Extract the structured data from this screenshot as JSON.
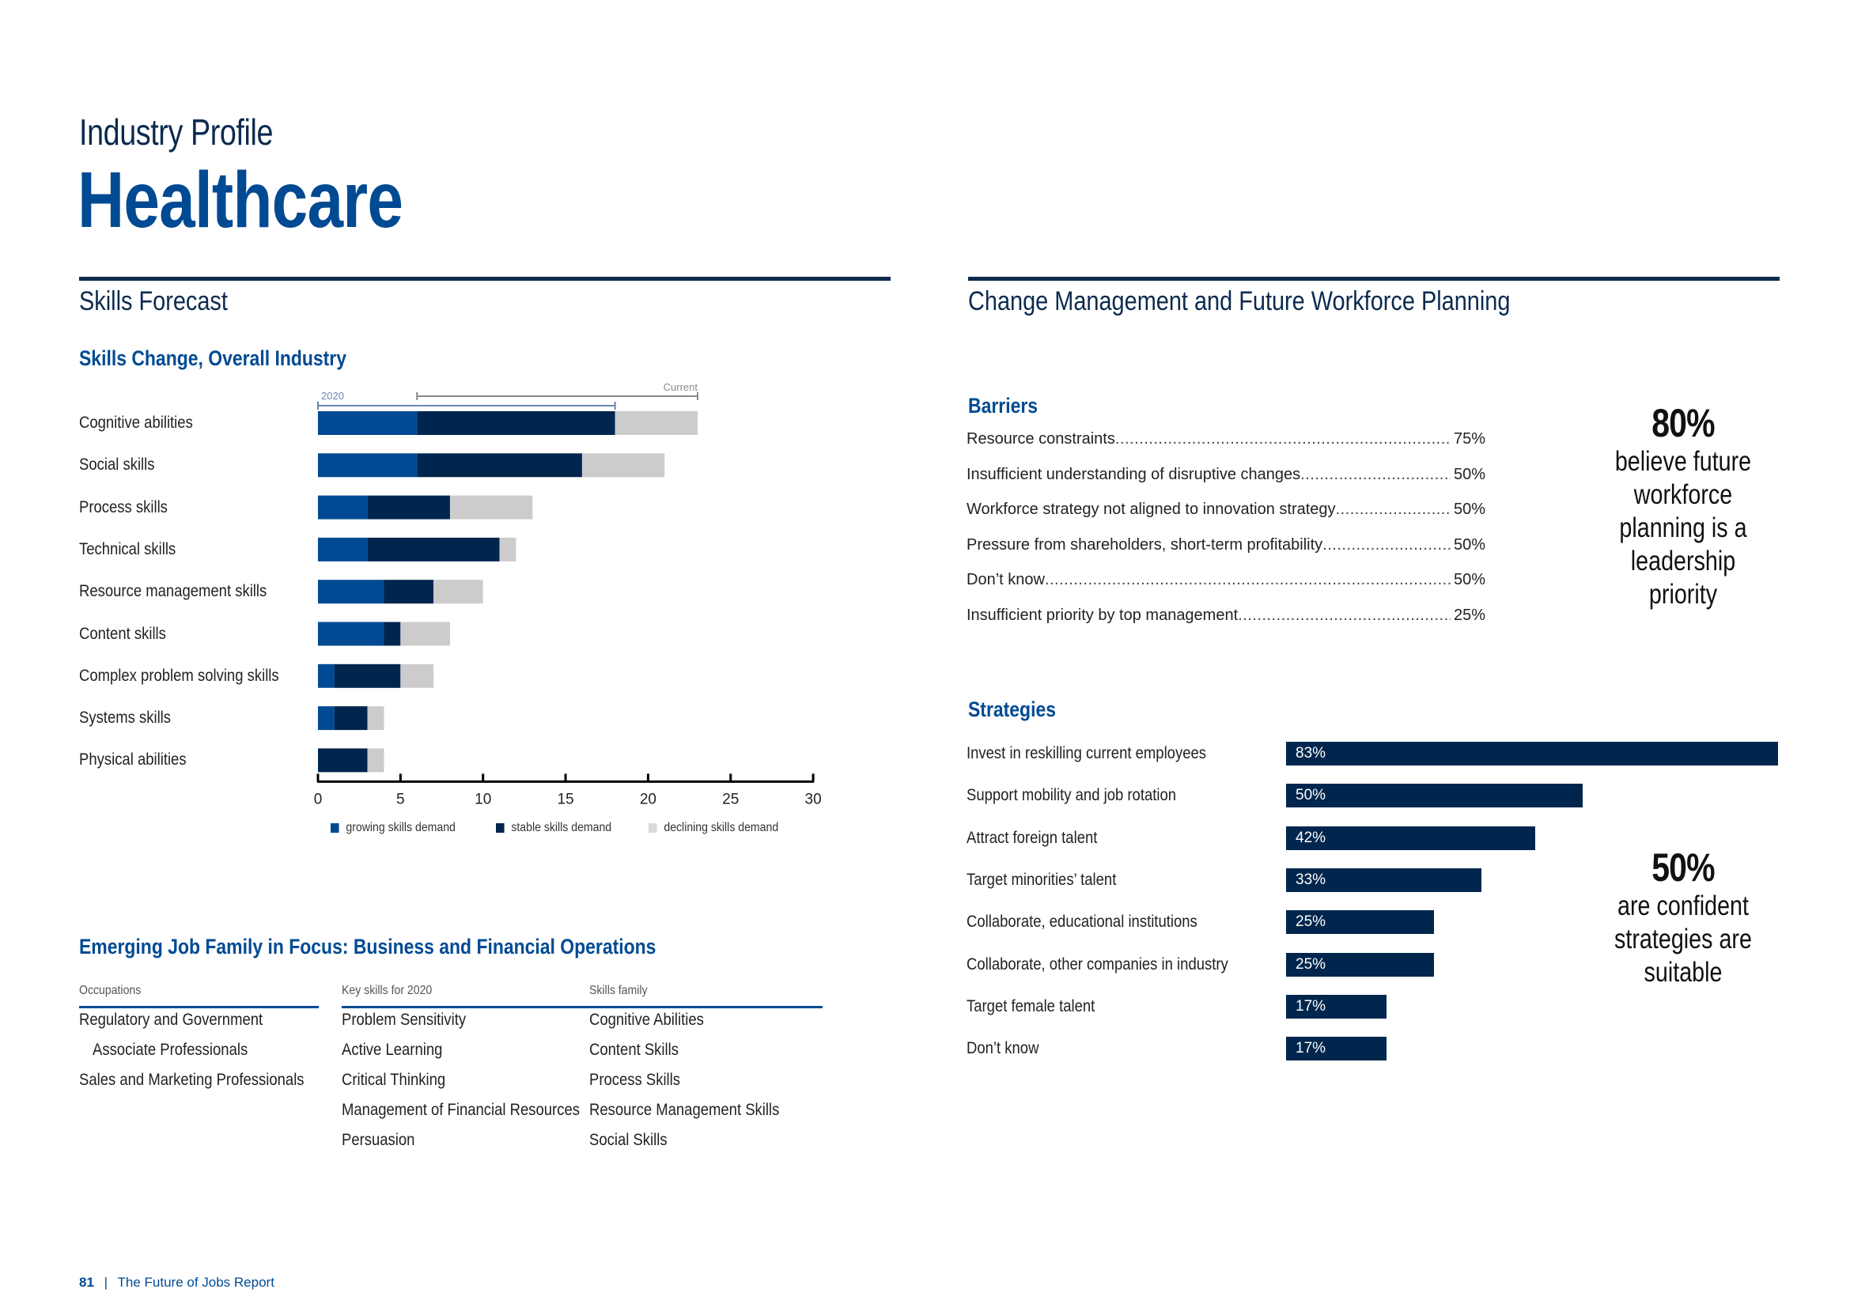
{
  "header": {
    "kicker": "Industry Profile",
    "title": "Healthcare"
  },
  "left": {
    "section_title": "Skills Forecast",
    "chart_title": "Skills Change, Overall Industry",
    "bracket_labels": {
      "period_2020": "2020",
      "current": "Current"
    }
  },
  "colors": {
    "growing": "#004a93",
    "stable": "#00264d",
    "declining": "#cccccc",
    "accent": "#004a93",
    "navy": "#0b2a4f"
  },
  "chart_data": {
    "type": "bar",
    "orientation": "horizontal",
    "stacked": true,
    "title": "Skills Change, Overall Industry",
    "categories": [
      "Cognitive abilities",
      "Social skills",
      "Process skills",
      "Technical skills",
      "Resource management skills",
      "Content skills",
      "Complex problem solving skills",
      "Systems skills",
      "Physical abilities"
    ],
    "series": [
      {
        "name": "growing skills demand",
        "values": [
          6,
          6,
          3,
          3,
          4,
          4,
          1,
          1,
          0
        ]
      },
      {
        "name": "stable skills demand",
        "values": [
          12,
          10,
          5,
          8,
          3,
          1,
          4,
          2,
          3
        ]
      },
      {
        "name": "declining skills demand",
        "values": [
          5,
          5,
          5,
          1,
          3,
          3,
          2,
          1,
          1
        ]
      }
    ],
    "xlim": [
      0,
      30
    ],
    "xticks": [
      0,
      5,
      10,
      15,
      20,
      25,
      30
    ],
    "xlabel": "",
    "ylabel": "",
    "grid": false,
    "legend_position": "bottom",
    "annotations": [
      {
        "label": "2020",
        "range": [
          0,
          18
        ]
      },
      {
        "label": "Current",
        "range": [
          6,
          23
        ]
      }
    ]
  },
  "job_family": {
    "title": "Emerging Job Family in Focus: Business and Financial Operations",
    "headers": [
      "Occupations",
      "Key skills for 2020",
      "Skills family"
    ],
    "occupations": [
      "Regulatory and Government",
      "Associate Professionals",
      "Sales and Marketing Professionals"
    ],
    "key_skills": [
      "Problem Sensitivity",
      "Active Learning",
      "Critical Thinking",
      "Management of Financial Resources",
      "Persuasion"
    ],
    "skills_family": [
      "Cognitive Abilities",
      "Content Skills",
      "Process Skills",
      "Resource Management Skills",
      "Social Skills"
    ]
  },
  "right": {
    "section_title": "Change Management and Future Workforce Planning",
    "barriers": {
      "title": "Barriers",
      "items": [
        {
          "label": "Resource constraints",
          "value": "75%"
        },
        {
          "label": "Insufficient understanding of disruptive changes",
          "value": "50%"
        },
        {
          "label": "Workforce strategy not aligned to innovation strategy ",
          "value": "50%"
        },
        {
          "label": "Pressure from shareholders, short-term profitability",
          "value": "50%"
        },
        {
          "label": "Don’t know",
          "value": "50%"
        },
        {
          "label": "Insufficient priority by top management",
          "value": "25%"
        }
      ]
    },
    "callout_leadership": {
      "value": "80%",
      "text": "believe future workforce planning is a leadership priority"
    },
    "strategies": {
      "title": "Strategies",
      "items": [
        {
          "label": "Invest in reskilling current employees",
          "value": 83,
          "display": "83%"
        },
        {
          "label": "Support mobility and job rotation",
          "value": 50,
          "display": "50%"
        },
        {
          "label": "Attract foreign talent",
          "value": 42,
          "display": "42%"
        },
        {
          "label": "Target minorities’ talent",
          "value": 33,
          "display": "33%"
        },
        {
          "label": "Collaborate, educational institutions",
          "value": 25,
          "display": "25%"
        },
        {
          "label": "Collaborate, other companies in industry",
          "value": 25,
          "display": "25%"
        },
        {
          "label": "Target female talent",
          "value": 17,
          "display": "17%"
        },
        {
          "label": "Don’t know",
          "value": 17,
          "display": "17%"
        }
      ]
    },
    "callout_confidence": {
      "value": "50%",
      "text": "are confident strategies are suitable"
    }
  },
  "footer": {
    "page_number": "81",
    "separator": "|",
    "report_name": "The Future of Jobs Report"
  }
}
